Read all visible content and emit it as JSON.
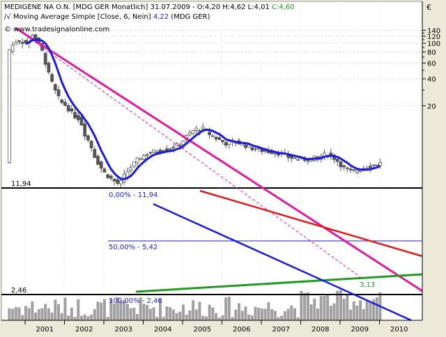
{
  "header": {
    "symbol_line_prefix": "MEDIGENE NA O.N. [MDG GER  Monatlich] 31.07.2009 - O:4,20 H:4,62 L:4,01 ",
    "symbol_line_close": "C:4,60",
    "indicator_line_prefix": "Moving Average Simple [Close, 6, Nein] ",
    "indicator_line_value": "4,22",
    "indicator_line_suffix": " (MDG GER)",
    "watermark": "© www.tradesignalonline.com",
    "currency": "€"
  },
  "colors": {
    "background": "#ffffff",
    "frame": "#ece9d8",
    "candle": "#555555",
    "moving_average": "#1a1adf",
    "resistance_trend": "#e01aa0",
    "red_trend": "#e01a1a",
    "green_trend": "#229922",
    "channel": "#1a1adf",
    "fib_line": "#000000",
    "volume": "#999999"
  },
  "levels": {
    "high_label": "11,94",
    "low_label": "2,46",
    "fib_0": "0,00% - 11,94",
    "fib_50": "50,00% - 5,42",
    "fib_100": "100,00% - 2,46",
    "support_label": "3,13"
  },
  "chart_data": {
    "type": "candlestick",
    "title": "MEDIGENE NA O.N. [MDG GER  Monatlich]",
    "ylabel": "€",
    "y_scale": "log",
    "y_ticks": [
      "140",
      "120",
      "100",
      "80",
      "60",
      "40",
      "20"
    ],
    "x_ticks": [
      "2001",
      "2002",
      "2003",
      "2004",
      "2005",
      "2006",
      "2007",
      "2008",
      "2009",
      "2010"
    ],
    "last_bar": {
      "date": "31.07.2009",
      "open": 4.2,
      "high": 4.62,
      "low": 4.01,
      "close": 4.6
    },
    "ma_last": 4.22,
    "fibonacci": [
      {
        "pct": "0,00%",
        "value": 11.94
      },
      {
        "pct": "50,00%",
        "value": 5.42
      },
      {
        "pct": "100,00%",
        "value": 2.46
      }
    ],
    "support_trend_value": 3.13,
    "grid": true
  }
}
